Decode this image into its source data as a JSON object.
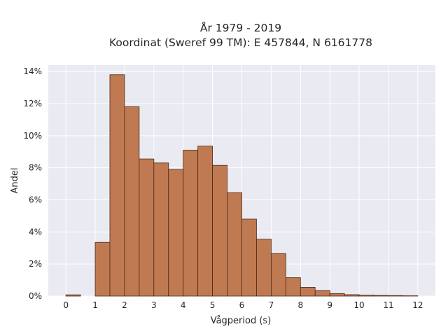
{
  "chart_data": {
    "type": "bar",
    "title_line1": "År 1979 - 2019",
    "title_line2": "Koordinat (Sweref 99 TM): E 457844, N 6161778",
    "xlabel": "Vågperiod (s)",
    "ylabel": "Andel",
    "xlim": [
      -0.6,
      12.6
    ],
    "ylim": [
      0,
      14.4
    ],
    "x_ticks": [
      0,
      1,
      2,
      3,
      4,
      5,
      6,
      7,
      8,
      9,
      10,
      11,
      12
    ],
    "x_tick_labels": [
      "0",
      "1",
      "2",
      "3",
      "4",
      "5",
      "6",
      "7",
      "8",
      "9",
      "10",
      "11",
      "12"
    ],
    "y_ticks": [
      0,
      2,
      4,
      6,
      8,
      10,
      12,
      14
    ],
    "y_tick_labels": [
      "0%",
      "2%",
      "4%",
      "6%",
      "8%",
      "10%",
      "12%",
      "14%"
    ],
    "bin_width": 0.5,
    "bins": [
      {
        "start": 0.0,
        "value": 0.08
      },
      {
        "start": 1.0,
        "value": 3.35
      },
      {
        "start": 1.5,
        "value": 13.8
      },
      {
        "start": 2.0,
        "value": 11.8
      },
      {
        "start": 2.5,
        "value": 8.55
      },
      {
        "start": 3.0,
        "value": 8.3
      },
      {
        "start": 3.5,
        "value": 7.9
      },
      {
        "start": 4.0,
        "value": 9.1
      },
      {
        "start": 4.5,
        "value": 9.35
      },
      {
        "start": 5.0,
        "value": 8.15
      },
      {
        "start": 5.5,
        "value": 6.45
      },
      {
        "start": 6.0,
        "value": 4.8
      },
      {
        "start": 6.5,
        "value": 3.55
      },
      {
        "start": 7.0,
        "value": 2.65
      },
      {
        "start": 7.5,
        "value": 1.15
      },
      {
        "start": 8.0,
        "value": 0.55
      },
      {
        "start": 8.5,
        "value": 0.35
      },
      {
        "start": 9.0,
        "value": 0.16
      },
      {
        "start": 9.5,
        "value": 0.09
      },
      {
        "start": 10.0,
        "value": 0.06
      },
      {
        "start": 10.5,
        "value": 0.04
      },
      {
        "start": 11.0,
        "value": 0.03
      },
      {
        "start": 11.5,
        "value": 0.02
      }
    ],
    "grid": true,
    "colors": {
      "bar_fill": "#c07a52",
      "bar_edge": "#4a2a18",
      "plot_background": "#eaeaf2",
      "grid": "#ffffff"
    }
  }
}
